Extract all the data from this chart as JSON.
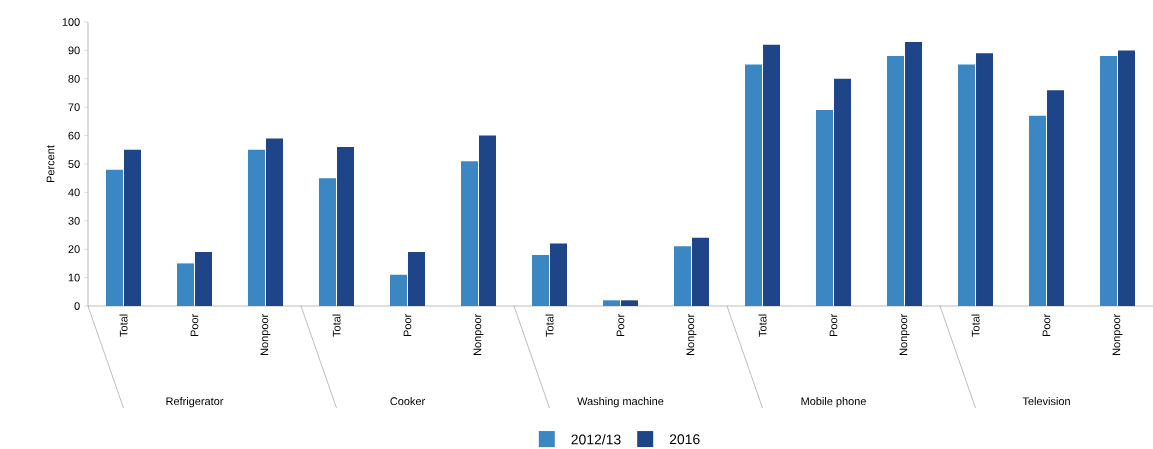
{
  "chart_data": {
    "type": "bar",
    "ylabel": "Percent",
    "categories": [
      "Total",
      "Poor",
      "Nonpoor",
      "Total",
      "Poor",
      "Nonpoor",
      "Total",
      "Poor",
      "Nonpoor",
      "Total",
      "Poor",
      "Nonpoor",
      "Total",
      "Poor",
      "Nonpoor"
    ],
    "annotations": [
      "Refrigerator",
      "Cooker",
      "Washing machine",
      "Mobile phone",
      "Television"
    ],
    "series": [
      {
        "name": "2012/13",
        "color": "#3a87c4",
        "values": [
          48,
          15,
          55,
          45,
          11,
          51,
          18,
          2,
          21,
          85,
          69,
          88,
          85,
          67,
          88
        ]
      },
      {
        "name": "2016",
        "color": "#1f4589",
        "values": [
          55,
          19,
          59,
          56,
          19,
          60,
          22,
          2,
          24,
          92,
          80,
          93,
          89,
          76,
          90
        ]
      }
    ],
    "ylim": [
      0,
      100
    ],
    "yticks": [
      0,
      10,
      20,
      30,
      40,
      50,
      60,
      70,
      80,
      90,
      100
    ],
    "grid": false,
    "legend": "bottom"
  }
}
